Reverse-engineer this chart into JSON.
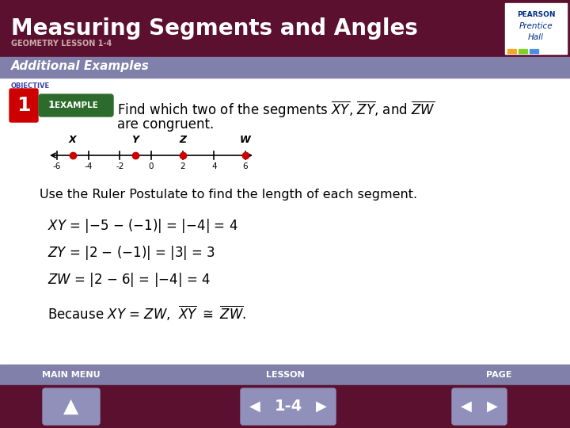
{
  "title": "Measuring Segments and Angles",
  "subtitle": "GEOMETRY LESSON 1-4",
  "banner_color": "#5c1030",
  "banner_text_color": "#ffffff",
  "section_label": "Additional Examples",
  "section_bg": "#8080aa",
  "section_text_color": "#ffffff",
  "objective_label": "OBJECTIVE",
  "objective_text_color": "#4040aa",
  "bg_color": "#ffffff",
  "number_line": {
    "xmin": -6,
    "xmax": 6,
    "ticks": [
      -6,
      -4,
      -2,
      0,
      2,
      4,
      6
    ],
    "tick_labels": [
      "-6",
      "-4",
      "-2",
      "0",
      "2",
      "4",
      "6"
    ],
    "points": [
      {
        "label": "X",
        "value": -5,
        "color": "#cc0000"
      },
      {
        "label": "Y",
        "value": -1,
        "color": "#cc0000"
      },
      {
        "label": "Z",
        "value": 2,
        "color": "#cc0000"
      },
      {
        "label": "W",
        "value": 6,
        "color": "#cc0000"
      }
    ]
  },
  "ruler_postulate_line": "Use the Ruler Postulate to find the length of each segment.",
  "footer_bg": "#8080aa",
  "footer_text_color": "#ffffff",
  "footer_dark_bg": "#5c1030",
  "bottom_labels": [
    "MAIN MENU",
    "LESSON",
    "PAGE"
  ],
  "page_number": "1-4"
}
